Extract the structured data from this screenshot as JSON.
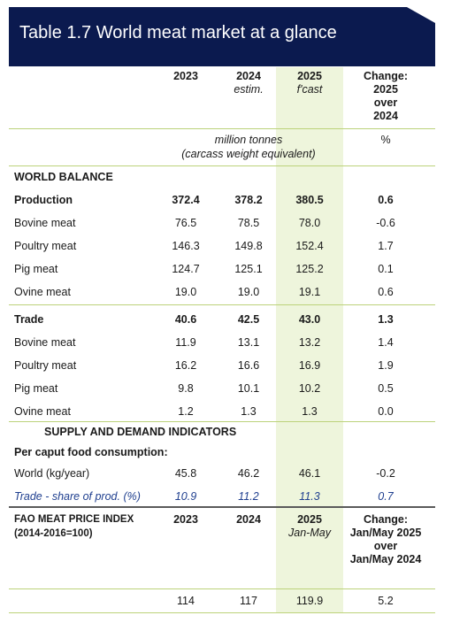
{
  "title": "Table 1.7 World meat market at a glance",
  "columns": [
    [
      "2023"
    ],
    [
      "2024",
      "estim."
    ],
    [
      "2025",
      "f'cast"
    ],
    [
      "Change:",
      "2025",
      "over",
      "2024"
    ]
  ],
  "units": {
    "main": [
      "million tonnes",
      "(carcass weight equivalent)"
    ],
    "change": "%"
  },
  "world_balance": {
    "heading": "WORLD BALANCE",
    "groups": [
      {
        "label": "Production",
        "values": [
          "372.4",
          "378.2",
          "380.5",
          "0.6"
        ],
        "items": [
          {
            "label": "Bovine meat",
            "values": [
              "76.5",
              "78.5",
              "78.0",
              "-0.6"
            ]
          },
          {
            "label": "Poultry meat",
            "values": [
              "146.3",
              "149.8",
              "152.4",
              "1.7"
            ]
          },
          {
            "label": "Pig meat",
            "values": [
              "124.7",
              "125.1",
              "125.2",
              "0.1"
            ]
          },
          {
            "label": "Ovine meat",
            "values": [
              "19.0",
              "19.0",
              "19.1",
              "0.6"
            ]
          }
        ]
      },
      {
        "label": "Trade",
        "values": [
          "40.6",
          "42.5",
          "43.0",
          "1.3"
        ],
        "items": [
          {
            "label": "Bovine meat",
            "values": [
              "11.9",
              "13.1",
              "13.2",
              "1.4"
            ]
          },
          {
            "label": "Poultry meat",
            "values": [
              "16.2",
              "16.6",
              "16.9",
              "1.9"
            ]
          },
          {
            "label": "Pig meat",
            "values": [
              "9.8",
              "10.1",
              "10.2",
              "0.5"
            ]
          },
          {
            "label": "Ovine meat",
            "values": [
              "1.2",
              "1.3",
              "1.3",
              "0.0"
            ]
          }
        ]
      }
    ]
  },
  "indicators": {
    "heading": "SUPPLY AND DEMAND INDICATORS",
    "subheading": "Per caput food consumption:",
    "rows": [
      {
        "label": "World (kg/year)",
        "values": [
          "45.8",
          "46.2",
          "46.1",
          "-0.2"
        ]
      },
      {
        "label": "Trade - share of prod. (%)",
        "values": [
          "10.9",
          "11.2",
          "11.3",
          "0.7"
        ]
      }
    ]
  },
  "price_index": {
    "label": [
      "FAO MEAT PRICE INDEX",
      "(2014-2016=100)"
    ],
    "columns": [
      [
        "2023"
      ],
      [
        "2024"
      ],
      [
        "2025",
        "Jan-May"
      ],
      [
        "Change:",
        "Jan/May 2025",
        "over",
        "Jan/May 2024"
      ]
    ],
    "values": [
      "114",
      "117",
      "119.9",
      "5.2"
    ]
  }
}
